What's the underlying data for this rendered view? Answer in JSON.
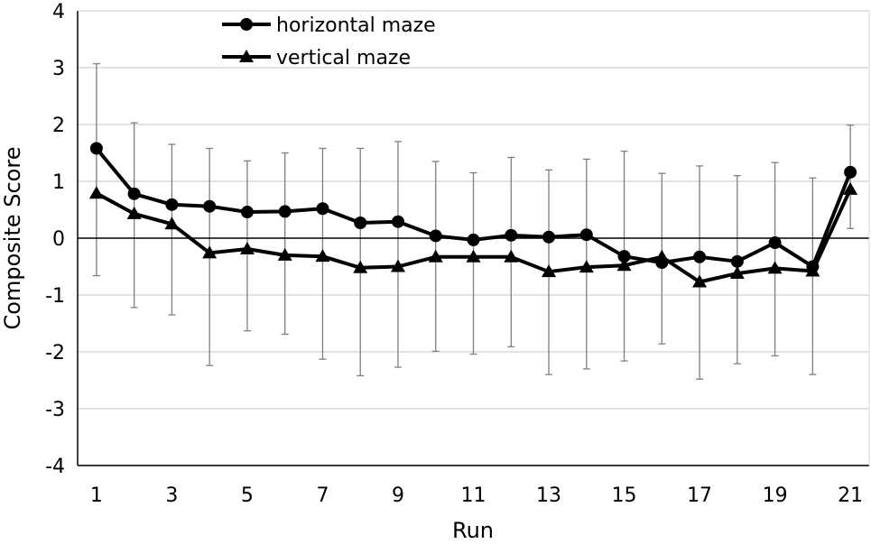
{
  "chart_data": {
    "type": "line",
    "title": "",
    "xlabel": "Run",
    "ylabel": "Composite Score",
    "x": [
      1,
      2,
      3,
      4,
      5,
      6,
      7,
      8,
      9,
      10,
      11,
      12,
      13,
      14,
      15,
      16,
      17,
      18,
      19,
      20,
      21
    ],
    "x_tick_labels": [
      "1",
      "3",
      "5",
      "7",
      "9",
      "11",
      "13",
      "15",
      "17",
      "19",
      "21"
    ],
    "y_tick_labels": [
      "4",
      "3",
      "2",
      "1",
      "0",
      "-1",
      "-2",
      "-3",
      "-4"
    ],
    "xlim": [
      0.5,
      21.5
    ],
    "ylim": [
      -4,
      4
    ],
    "grid": "horizontal",
    "legend": "top-center",
    "series": [
      {
        "name": "horizontal maze",
        "marker": "circle",
        "color": "#000000",
        "values": [
          1.58,
          0.78,
          0.59,
          0.56,
          0.46,
          0.47,
          0.52,
          0.27,
          0.29,
          0.04,
          -0.03,
          0.05,
          0.02,
          0.06,
          -0.32,
          -0.43,
          -0.33,
          -0.41,
          -0.08,
          -0.5,
          1.16
        ],
        "error_upper": [
          3.07,
          2.03,
          1.65,
          1.58,
          1.36,
          1.5,
          1.58,
          1.58,
          1.7,
          1.35,
          1.15,
          1.42,
          1.2,
          1.39,
          1.53,
          1.14,
          1.27,
          1.1,
          1.33,
          1.06,
          1.99
        ],
        "error_lower": [
          -0.66,
          -1.22,
          -1.35,
          -2.24,
          -1.63,
          -1.69,
          -2.13,
          -2.42,
          -2.27,
          -1.99,
          -2.04,
          -1.91,
          -2.4,
          -2.3,
          -2.16,
          -1.86,
          -2.48,
          -2.21,
          -2.07,
          -2.4,
          0.17
        ]
      },
      {
        "name": "vertical maze",
        "marker": "triangle",
        "color": "#000000",
        "values": [
          0.79,
          0.43,
          0.25,
          -0.26,
          -0.19,
          -0.3,
          -0.32,
          -0.52,
          -0.5,
          -0.33,
          -0.33,
          -0.33,
          -0.59,
          -0.51,
          -0.48,
          -0.33,
          -0.77,
          -0.62,
          -0.53,
          -0.58,
          0.86
        ]
      }
    ]
  }
}
